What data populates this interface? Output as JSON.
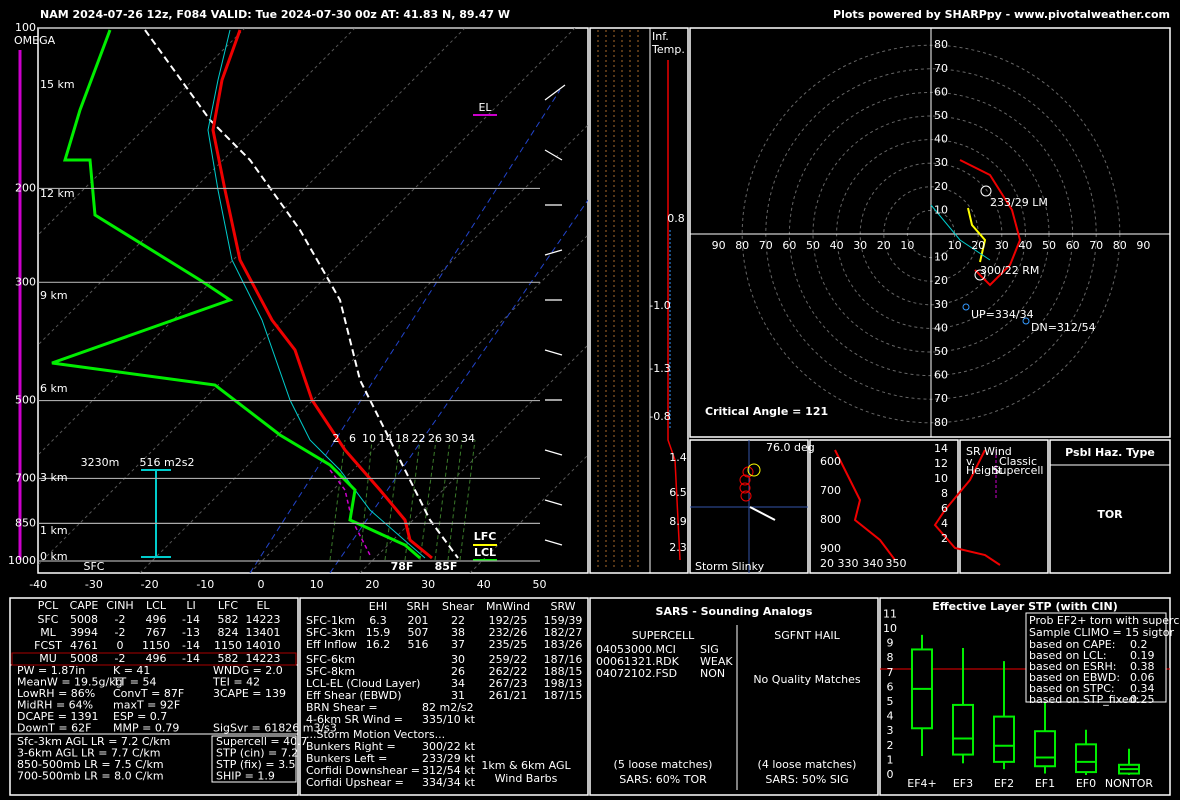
{
  "header": {
    "title": "NAM 2024-07-26 12z, F084  VALID: Tue 2024-07-30 00z  AT: 41.83 N, 89.47 W",
    "credit": "Plots powered by SHARPpy - www.pivotalweather.com"
  },
  "skewt": {
    "omega": "OMEGA",
    "pressure_ticks": [
      100,
      200,
      300,
      500,
      700,
      850,
      1000
    ],
    "height_labels": [
      "15 km",
      "12 km",
      "9 km",
      "6 km",
      "3 km",
      "1 km",
      "0 km"
    ],
    "temp_ticks": [
      -40,
      -30,
      -20,
      -10,
      0,
      10,
      20,
      30,
      40,
      50
    ],
    "mixing_ratio": [
      2,
      6,
      10,
      14,
      18,
      22,
      26,
      30,
      34
    ],
    "el": "EL",
    "lfc": "LFC",
    "lcl": "LCL",
    "sfc_dewpoint": "78F",
    "sfc_temp": "85F",
    "sfc": "SFC",
    "eff_top": "3230m",
    "eff_srh": "516 m2s2"
  },
  "inferred_temp": {
    "title_1": "Inf.",
    "title_2": "Temp.",
    "values": [
      "0.8",
      "-1.0",
      "-1.3",
      "-0.8",
      "1.4",
      "6.5",
      "8.9",
      "2.3"
    ]
  },
  "hodograph": {
    "ring_labels": [
      10,
      20,
      30,
      40,
      50,
      60,
      70,
      80
    ],
    "axis_labels": [
      10,
      20,
      30,
      40,
      50,
      60,
      70,
      80,
      90
    ],
    "left_mover": "233/29 LM",
    "right_mover": "300/22 RM",
    "updraft": "UP=334/34",
    "downdraft": "DN=312/54",
    "critical_angle": "Critical Angle = 121"
  },
  "slinky": {
    "angle": "76.0 deg",
    "title": "Storm Slinky"
  },
  "theta_e": {
    "pressure_labels": [
      600,
      700,
      800,
      900
    ],
    "theta_labels": [
      "20 330",
      "340",
      "350"
    ]
  },
  "sr_wind": {
    "title_1": "SR Wind",
    "title_2": "v.",
    "title_3": "Height",
    "note_1": "Classic",
    "note_2": "Supercell",
    "height_ticks": [
      2,
      4,
      6,
      8,
      10,
      12,
      14
    ]
  },
  "hazard": {
    "title": "Psbl Haz. Type",
    "value": "TOR"
  },
  "parcels": {
    "header": [
      "PCL",
      "CAPE",
      "CINH",
      "LCL",
      "LI",
      "LFC",
      "EL"
    ],
    "rows": [
      [
        "SFC",
        "5008",
        "-2",
        "496",
        "-14",
        "582",
        "14223"
      ],
      [
        "ML",
        "3994",
        "-2",
        "767",
        "-13",
        "824",
        "13401"
      ],
      [
        "FCST",
        "4761",
        "0",
        "1150",
        "-14",
        "1150",
        "14010"
      ],
      [
        "MU",
        "5008",
        "-2",
        "496",
        "-14",
        "582",
        "14223"
      ]
    ],
    "indices": [
      [
        "PW = 1.87in",
        "K = 41",
        "WNDG = 2.0"
      ],
      [
        "MeanW = 19.5g/kg",
        "TT = 54",
        "TEI = 42"
      ],
      [
        "LowRH = 86%",
        "ConvT = 87F",
        "3CAPE = 139"
      ],
      [
        "MidRH = 64%",
        "maxT = 92F"
      ],
      [
        "DCAPE = 1391",
        "ESP = 0.7"
      ],
      [
        "DownT = 62F",
        "MMP = 0.79",
        "SigSvr = 61826 m3/s3"
      ]
    ],
    "lapse_rates": [
      "Sfc-3km AGL LR = 7.2 C/km",
      "3-6km AGL LR = 7.7 C/km",
      "850-500mb LR = 7.5 C/km",
      "700-500mb LR = 8.0 C/km"
    ],
    "params": [
      "Supercell = 40.7",
      "STP (cin) = 7.2",
      "STP (fix) = 3.5",
      "SHIP = 1.9"
    ]
  },
  "kinematics": {
    "header": [
      "EHI",
      "SRH",
      "Shear",
      "MnWind",
      "SRW"
    ],
    "rows": [
      {
        "label": "SFC-1km",
        "cells": [
          "6.3",
          "201",
          "22",
          "192/25",
          "159/39"
        ]
      },
      {
        "label": "SFC-3km",
        "cells": [
          "15.9",
          "507",
          "38",
          "232/26",
          "182/27"
        ]
      },
      {
        "label": "Eff Inflow",
        "cells": [
          "16.2",
          "516",
          "37",
          "235/25",
          "183/26"
        ]
      },
      {
        "label": "SFC-6km",
        "cells": [
          "30",
          "259/22",
          "187/16"
        ]
      },
      {
        "label": "SFC-8km",
        "cells": [
          "26",
          "262/22",
          "188/15"
        ]
      },
      {
        "label": "LCL-EL (Cloud Layer)",
        "cells": [
          "34",
          "267/23",
          "198/13"
        ]
      },
      {
        "label": "Eff Shear (EBWD)",
        "cells": [
          "31",
          "261/21",
          "187/15"
        ]
      }
    ],
    "extra": [
      [
        "BRN Shear =",
        "82 m2/s2"
      ],
      [
        "4-6km SR Wind =",
        "335/10 kt"
      ]
    ],
    "motion_title": "...Storm Motion Vectors...",
    "motion": [
      [
        "Bunkers Right =",
        "300/22 kt"
      ],
      [
        "Bunkers Left =",
        "233/29 kt"
      ],
      [
        "Corfidi Downshear =",
        "312/54 kt"
      ],
      [
        "Corfidi Upshear =",
        "334/34 kt"
      ]
    ],
    "barb_note_1": "1km & 6km AGL",
    "barb_note_2": "Wind Barbs"
  },
  "sars": {
    "title": "SARS - Sounding Analogs",
    "supercell": "SUPERCELL",
    "hail": "SGFNT HAIL",
    "matches": [
      [
        "04053000.MCI",
        "SIG"
      ],
      [
        "00061321.RDK",
        "WEAK"
      ],
      [
        "04072102.FSD",
        "NON"
      ]
    ],
    "hail_note": "No Quality Matches",
    "supercell_loose": "(5 loose matches)",
    "supercell_sars": "SARS: 60% TOR",
    "hail_loose": "(4 loose matches)",
    "hail_sars": "SARS: 50% SIG"
  },
  "stp": {
    "title": "Effective Layer STP (with CIN)",
    "yticks": [
      0,
      1,
      2,
      3,
      4,
      5,
      6,
      7,
      8,
      9,
      10,
      11
    ],
    "categories": [
      "EF4+",
      "EF3",
      "EF2",
      "EF1",
      "EF0",
      "NONTOR"
    ],
    "legend_title": "Prob EF2+ torn with supercell",
    "legend_sample": "Sample CLIMO = 15 sigtor",
    "legend_rows": [
      [
        "based on CAPE:",
        "0.2"
      ],
      [
        "based on LCL:",
        "0.19"
      ],
      [
        "based on ESRH:",
        "0.38"
      ],
      [
        "based on EBWD:",
        "0.06"
      ],
      [
        "based on STPC:",
        "0.34"
      ],
      [
        "based on STP_fixed:",
        "0.25"
      ]
    ]
  }
}
